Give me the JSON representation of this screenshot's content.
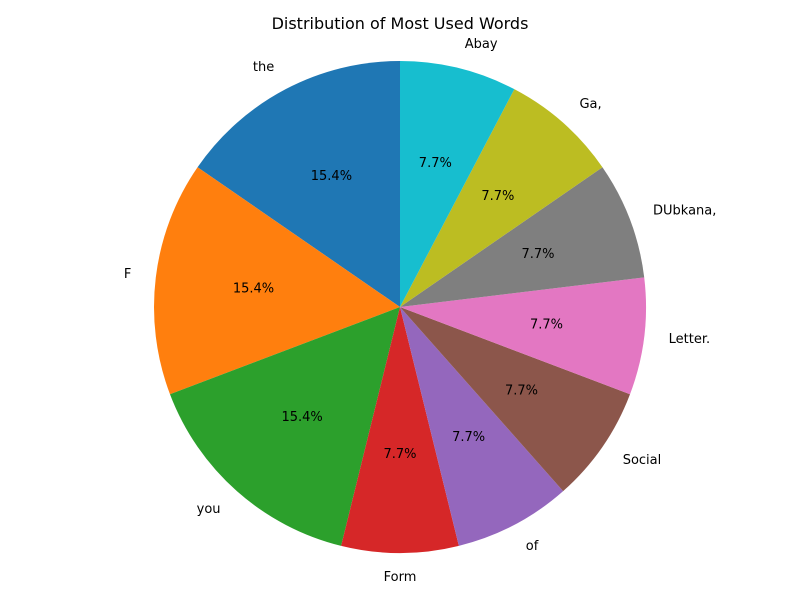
{
  "chart_data": {
    "type": "pie",
    "title": "Distribution of Most Used Words",
    "start_angle_deg": 90,
    "direction": "counterclockwise",
    "slices": [
      {
        "label": "the",
        "value": 2,
        "pct_label": "15.4%",
        "color": "#1f77b4"
      },
      {
        "label": "F",
        "value": 2,
        "pct_label": "15.4%",
        "color": "#ff7f0e"
      },
      {
        "label": "you",
        "value": 2,
        "pct_label": "15.4%",
        "color": "#2ca02c"
      },
      {
        "label": "Form",
        "value": 1,
        "pct_label": "7.7%",
        "color": "#d62728"
      },
      {
        "label": "of",
        "value": 1,
        "pct_label": "7.7%",
        "color": "#9467bd"
      },
      {
        "label": "Social",
        "value": 1,
        "pct_label": "7.7%",
        "color": "#8c564b"
      },
      {
        "label": "Letter.",
        "value": 1,
        "pct_label": "7.7%",
        "color": "#e377c2"
      },
      {
        "label": "DUbkana,",
        "value": 1,
        "pct_label": "7.7%",
        "color": "#7f7f7f"
      },
      {
        "label": "Ga,",
        "value": 1,
        "pct_label": "7.7%",
        "color": "#bcbd22"
      },
      {
        "label": "Abay",
        "value": 1,
        "pct_label": "7.7%",
        "color": "#17becf"
      }
    ]
  }
}
